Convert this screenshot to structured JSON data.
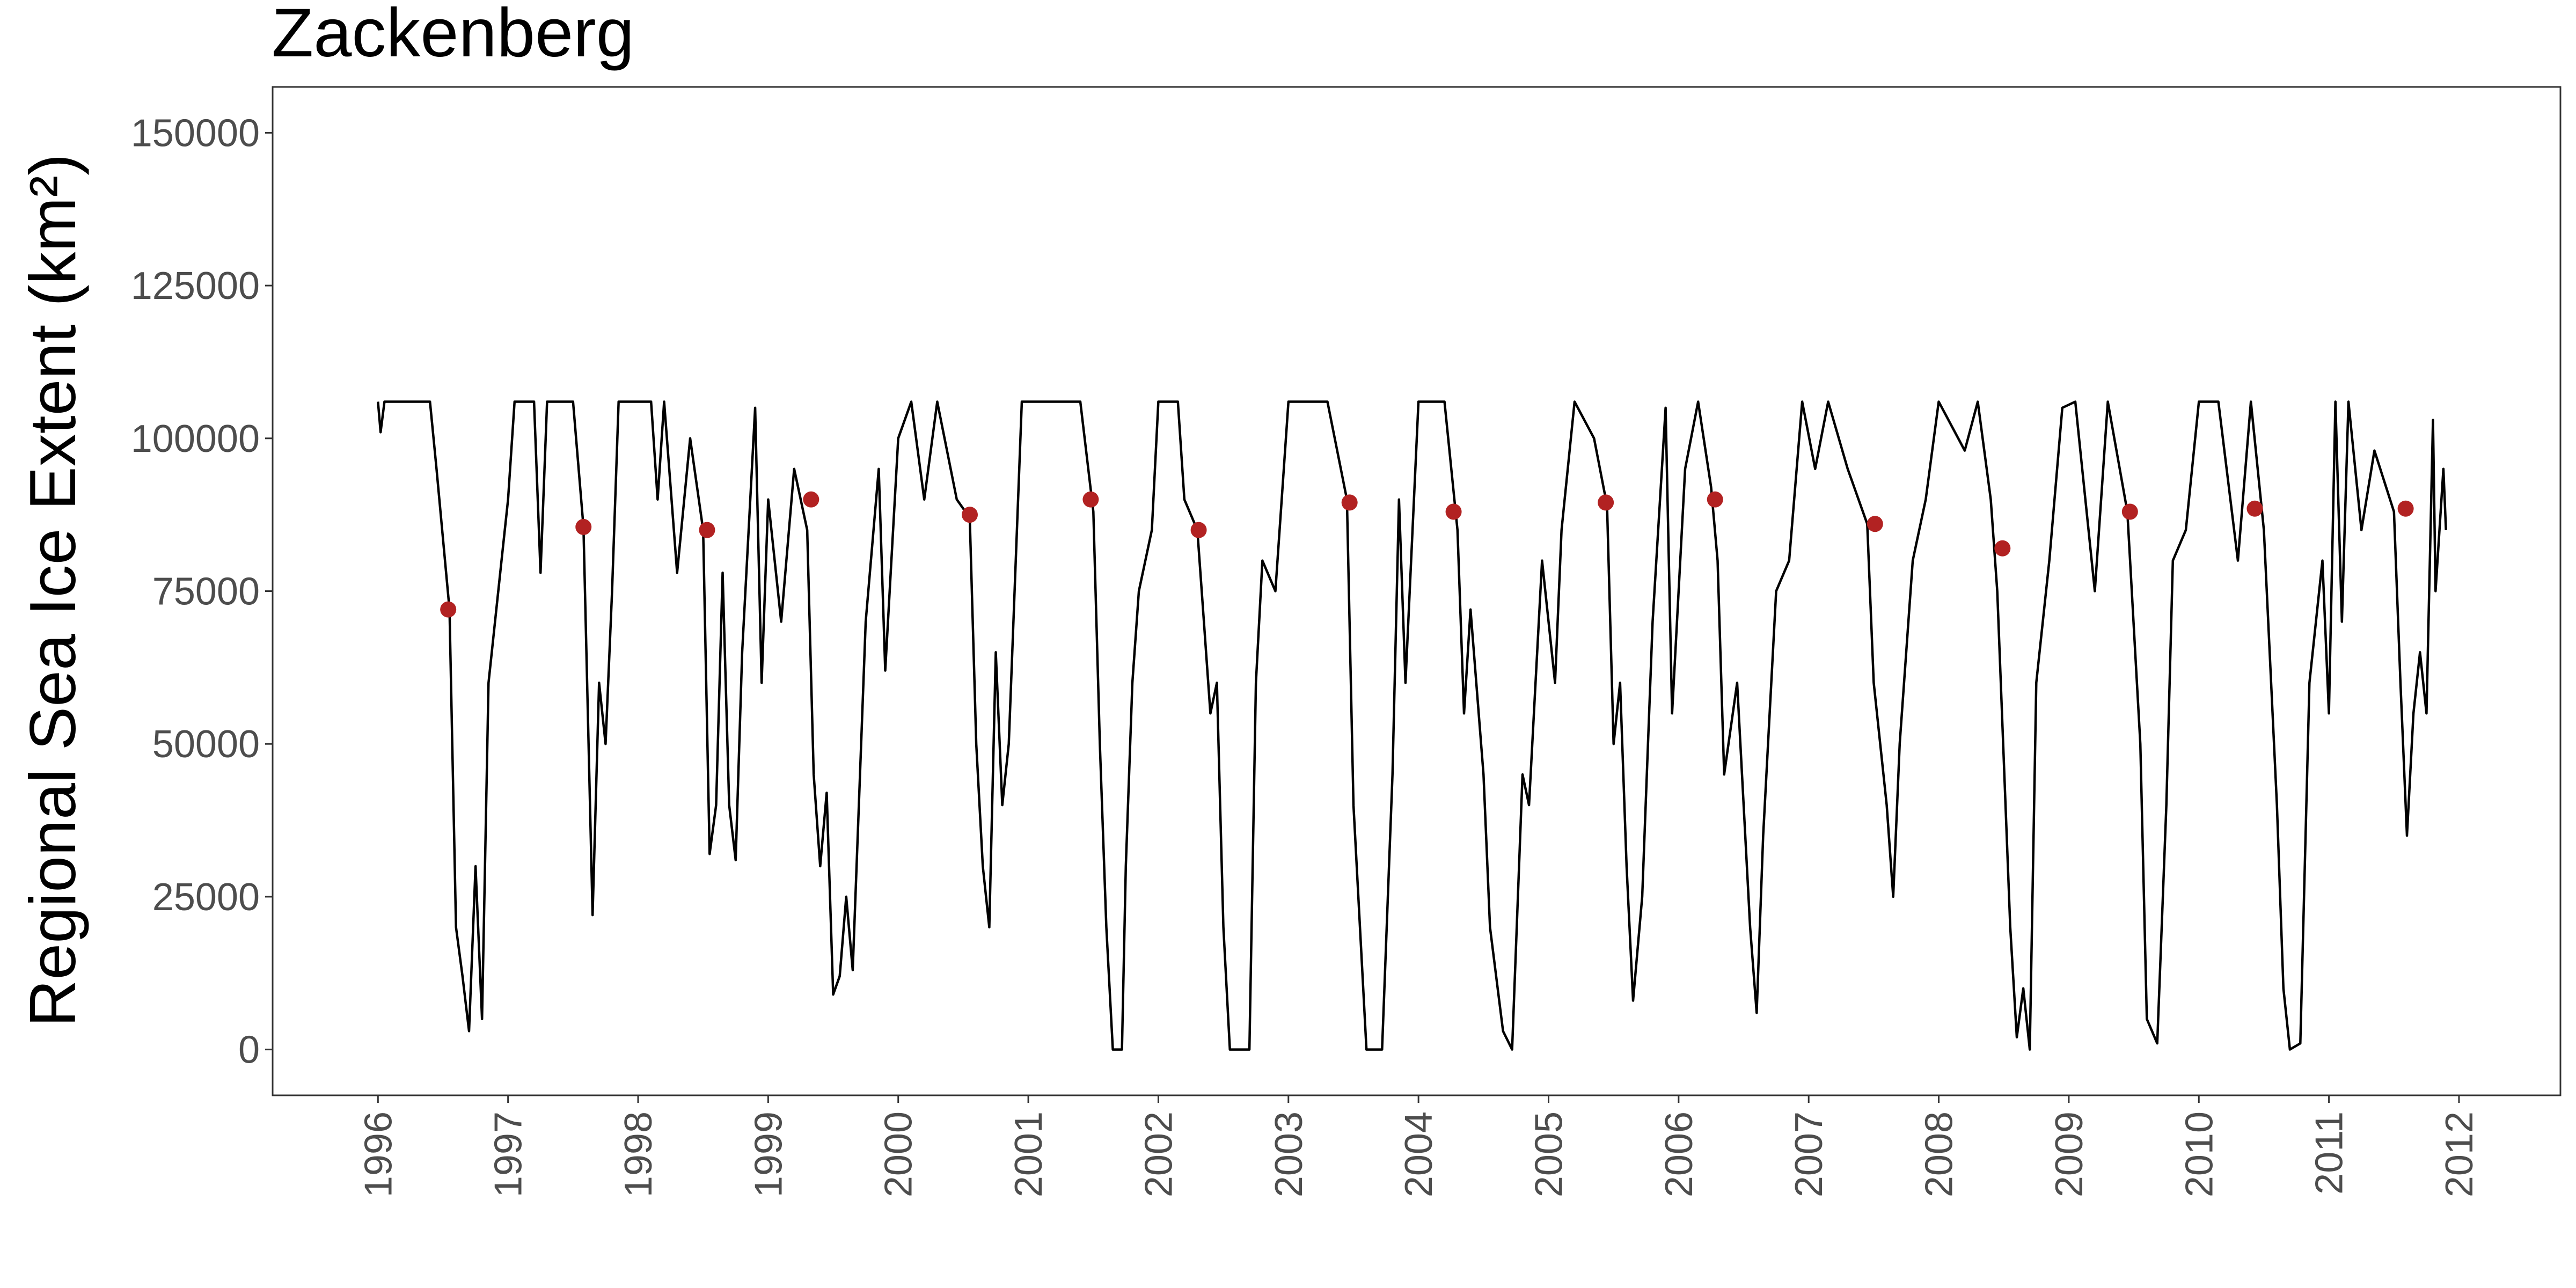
{
  "chart_data": {
    "type": "line",
    "title": "Zackenberg",
    "y_label": "Regional Sea Ice Extent (km²)",
    "xlim": [
      1995.19,
      2012.78
    ],
    "ylim": [
      -7500,
      157500
    ],
    "xticks": [
      1996,
      1997,
      1998,
      1999,
      2000,
      2001,
      2002,
      2003,
      2004,
      2005,
      2006,
      2007,
      2008,
      2009,
      2010,
      2011,
      2012
    ],
    "yticks": [
      0,
      25000,
      50000,
      75000,
      100000,
      125000,
      150000
    ],
    "grid": false,
    "series": [
      {
        "type": "line",
        "color": "#000000",
        "x": [
          1996.0,
          1996.02,
          1996.05,
          1996.4,
          1996.45,
          1996.55,
          1996.6,
          1996.65,
          1996.7,
          1996.75,
          1996.8,
          1996.85,
          1996.95,
          1997.0,
          1997.05,
          1997.2,
          1997.25,
          1997.3,
          1997.5,
          1997.58,
          1997.65,
          1997.7,
          1997.75,
          1997.8,
          1997.85,
          1998.1,
          1998.15,
          1998.2,
          1998.3,
          1998.4,
          1998.5,
          1998.55,
          1998.6,
          1998.65,
          1998.7,
          1998.75,
          1998.8,
          1998.9,
          1998.95,
          1999.0,
          1999.1,
          1999.2,
          1999.3,
          1999.35,
          1999.4,
          1999.45,
          1999.5,
          1999.55,
          1999.6,
          1999.65,
          1999.75,
          1999.85,
          1999.9,
          2000.0,
          2000.1,
          2000.2,
          2000.3,
          2000.45,
          2000.55,
          2000.6,
          2000.65,
          2000.7,
          2000.75,
          2000.8,
          2000.85,
          2000.95,
          2001.2,
          2001.4,
          2001.5,
          2001.55,
          2001.6,
          2001.65,
          2001.72,
          2001.75,
          2001.8,
          2001.85,
          2001.95,
          2002.0,
          2002.15,
          2002.2,
          2002.3,
          2002.35,
          2002.4,
          2002.45,
          2002.5,
          2002.55,
          2002.7,
          2002.75,
          2002.8,
          2002.9,
          2003.0,
          2003.3,
          2003.45,
          2003.5,
          2003.6,
          2003.72,
          2003.8,
          2003.85,
          2003.9,
          2004.0,
          2004.2,
          2004.3,
          2004.35,
          2004.4,
          2004.5,
          2004.55,
          2004.65,
          2004.72,
          2004.8,
          2004.85,
          2004.95,
          2005.05,
          2005.1,
          2005.2,
          2005.35,
          2005.45,
          2005.5,
          2005.55,
          2005.6,
          2005.65,
          2005.72,
          2005.8,
          2005.9,
          2005.95,
          2006.05,
          2006.15,
          2006.25,
          2006.3,
          2006.35,
          2006.45,
          2006.55,
          2006.6,
          2006.65,
          2006.75,
          2006.85,
          2006.95,
          2007.05,
          2007.15,
          2007.3,
          2007.45,
          2007.5,
          2007.6,
          2007.65,
          2007.7,
          2007.8,
          2007.9,
          2008.0,
          2008.2,
          2008.3,
          2008.4,
          2008.45,
          2008.55,
          2008.6,
          2008.65,
          2008.7,
          2008.75,
          2008.85,
          2008.95,
          2009.05,
          2009.2,
          2009.3,
          2009.45,
          2009.55,
          2009.6,
          2009.68,
          2009.75,
          2009.8,
          2009.9,
          2010.0,
          2010.15,
          2010.3,
          2010.4,
          2010.5,
          2010.6,
          2010.65,
          2010.7,
          2010.78,
          2010.85,
          2010.95,
          2011.0,
          2011.05,
          2011.1,
          2011.15,
          2011.25,
          2011.35,
          2011.5,
          2011.55,
          2011.6,
          2011.65,
          2011.7,
          2011.75,
          2011.8,
          2011.82,
          2011.88,
          2011.9
        ],
        "values": [
          106000,
          101000,
          106000,
          106000,
          95000,
          72000,
          20000,
          12000,
          3000,
          30000,
          5000,
          60000,
          80000,
          90000,
          106000,
          106000,
          78000,
          106000,
          106000,
          85500,
          22000,
          60000,
          50000,
          75000,
          106000,
          106000,
          90000,
          106000,
          78000,
          100000,
          85000,
          32000,
          40000,
          78000,
          40000,
          31000,
          65000,
          105000,
          60000,
          90000,
          70000,
          95000,
          85000,
          45000,
          30000,
          42000,
          9000,
          12000,
          25000,
          13000,
          70000,
          95000,
          62000,
          100000,
          106000,
          90000,
          106000,
          90000,
          87000,
          50000,
          30000,
          20000,
          65000,
          40000,
          50000,
          106000,
          106000,
          106000,
          88000,
          50000,
          20000,
          0,
          0,
          30000,
          60000,
          75000,
          85000,
          106000,
          106000,
          90000,
          85000,
          70000,
          55000,
          60000,
          20000,
          0,
          0,
          60000,
          80000,
          75000,
          106000,
          106000,
          90000,
          40000,
          0,
          0,
          45000,
          90000,
          60000,
          106000,
          106000,
          85000,
          55000,
          72000,
          45000,
          20000,
          3000,
          0,
          45000,
          40000,
          80000,
          60000,
          85000,
          106000,
          100000,
          89000,
          50000,
          60000,
          30000,
          8000,
          25000,
          70000,
          105000,
          55000,
          95000,
          106000,
          92000,
          80000,
          45000,
          60000,
          20000,
          6000,
          35000,
          75000,
          80000,
          106000,
          95000,
          106000,
          95000,
          86000,
          60000,
          40000,
          25000,
          50000,
          80000,
          90000,
          106000,
          98000,
          106000,
          90000,
          75000,
          20000,
          2000,
          10000,
          0,
          60000,
          80000,
          105000,
          106000,
          75000,
          106000,
          88000,
          50000,
          5000,
          1000,
          40000,
          80000,
          85000,
          106000,
          106000,
          80000,
          106000,
          85000,
          40000,
          10000,
          0,
          1000,
          60000,
          80000,
          55000,
          106000,
          70000,
          106000,
          85000,
          98000,
          88000,
          60000,
          35000,
          55000,
          65000,
          55000,
          103000,
          75000,
          95000,
          85000
        ]
      },
      {
        "type": "scatter",
        "color": "#b22222",
        "x": [
          1996.54,
          1997.58,
          1998.53,
          1999.33,
          2000.55,
          2001.48,
          2002.31,
          2003.47,
          2004.27,
          2005.44,
          2006.28,
          2007.51,
          2008.49,
          2009.47,
          2010.43,
          2011.59
        ],
        "values": [
          72000,
          85500,
          85000,
          90000,
          87500,
          90000,
          85000,
          89500,
          88000,
          89500,
          90000,
          86000,
          82000,
          88000,
          88500,
          88500
        ]
      }
    ]
  }
}
